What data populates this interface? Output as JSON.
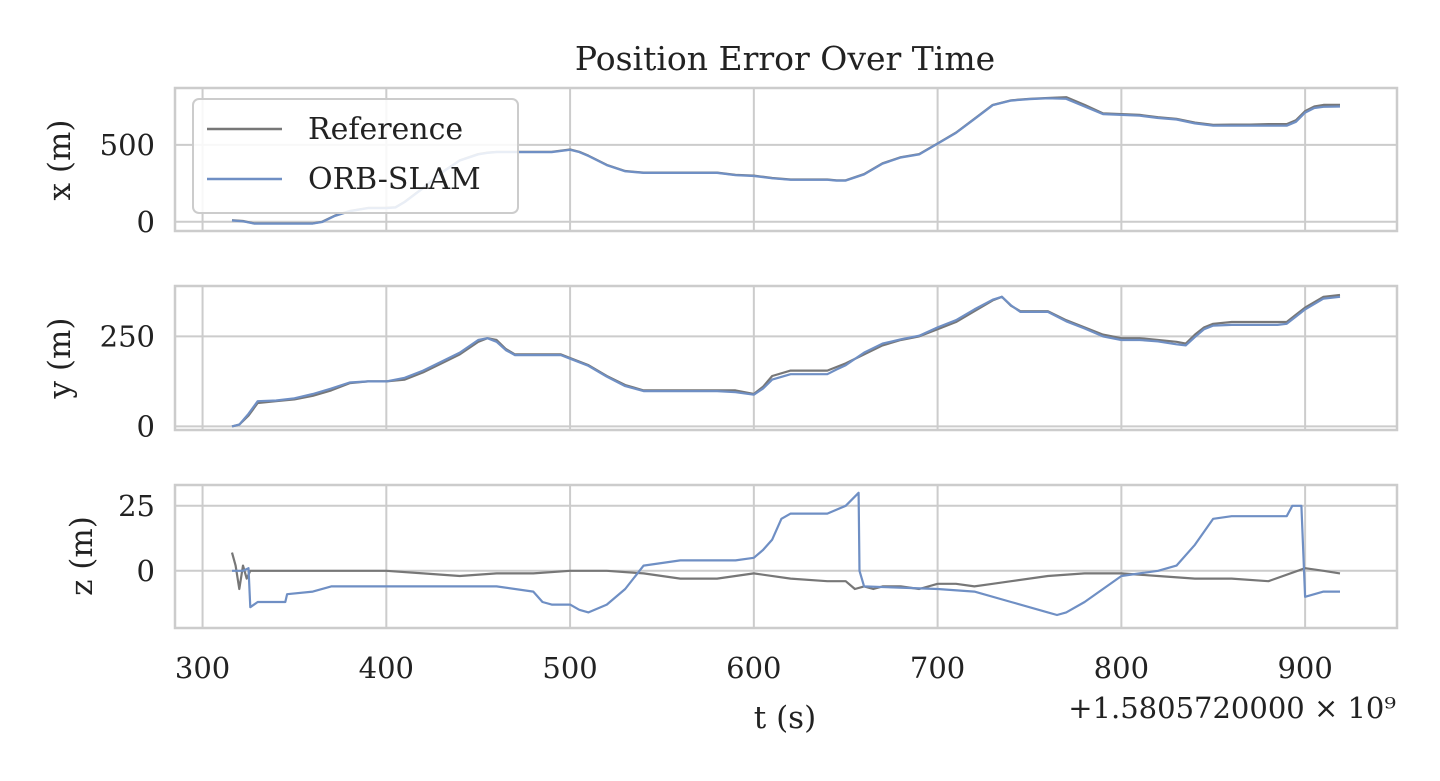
{
  "chart_data": {
    "type": "line",
    "title": "Position Error Over Time",
    "xlabel": "t (s)",
    "x_offset_text": "+1.5805720000 × 10⁹",
    "xlim": [
      285,
      950
    ],
    "x_ticks": [
      300,
      400,
      500,
      600,
      700,
      800,
      900
    ],
    "legend": {
      "placement": "top-left",
      "entries": [
        "Reference",
        "ORB-SLAM"
      ]
    },
    "colors": {
      "Reference": "#777777",
      "ORB-SLAM": "#6f8fc4"
    },
    "grid": true,
    "subplots": [
      {
        "id": "x",
        "ylabel": "x (m)",
        "ylim": [
          -60,
          870
        ],
        "y_ticks": [
          0,
          500
        ],
        "series": [
          {
            "name": "Reference",
            "x": [
              316,
              322,
              328,
              340,
              350,
              360,
              365,
              372,
              380,
              390,
              400,
              405,
              410,
              420,
              430,
              440,
              450,
              455,
              460,
              470,
              480,
              490,
              500,
              505,
              510,
              520,
              530,
              540,
              560,
              580,
              590,
              600,
              610,
              620,
              630,
              640,
              645,
              650,
              660,
              670,
              680,
              690,
              700,
              710,
              720,
              730,
              740,
              750,
              760,
              770,
              780,
              790,
              800,
              810,
              820,
              830,
              840,
              850,
              860,
              870,
              880,
              890,
              895,
              900,
              905,
              910,
              919
            ],
            "y": [
              10,
              5,
              -10,
              -10,
              -10,
              -10,
              0,
              40,
              70,
              90,
              90,
              95,
              130,
              220,
              320,
              400,
              440,
              450,
              455,
              455,
              455,
              455,
              470,
              455,
              430,
              370,
              330,
              320,
              320,
              320,
              305,
              300,
              285,
              275,
              275,
              275,
              270,
              270,
              310,
              380,
              420,
              440,
              510,
              580,
              670,
              760,
              790,
              800,
              805,
              810,
              760,
              705,
              700,
              695,
              680,
              670,
              645,
              630,
              632,
              632,
              635,
              635,
              660,
              720,
              750,
              760,
              760
            ]
          },
          {
            "name": "ORB-SLAM",
            "x": [
              316,
              322,
              328,
              340,
              350,
              360,
              365,
              372,
              380,
              390,
              400,
              405,
              410,
              420,
              430,
              440,
              450,
              455,
              460,
              470,
              480,
              490,
              500,
              505,
              510,
              520,
              530,
              540,
              560,
              580,
              590,
              600,
              610,
              620,
              630,
              640,
              645,
              650,
              660,
              670,
              680,
              690,
              700,
              710,
              720,
              730,
              740,
              750,
              760,
              770,
              780,
              790,
              800,
              810,
              820,
              830,
              840,
              850,
              860,
              870,
              880,
              890,
              895,
              900,
              905,
              910,
              919
            ],
            "y": [
              8,
              3,
              -12,
              -12,
              -12,
              -12,
              -2,
              38,
              68,
              88,
              88,
              93,
              128,
              218,
              318,
              398,
              438,
              448,
              453,
              453,
              453,
              453,
              468,
              453,
              428,
              368,
              328,
              318,
              318,
              318,
              303,
              298,
              283,
              273,
              273,
              273,
              268,
              268,
              308,
              378,
              418,
              438,
              508,
              578,
              668,
              758,
              788,
              798,
              803,
              800,
              750,
              700,
              695,
              690,
              675,
              665,
              640,
              625,
              625,
              625,
              625,
              625,
              650,
              710,
              740,
              748,
              750
            ]
          }
        ]
      },
      {
        "id": "y",
        "ylabel": "y (m)",
        "ylim": [
          -10,
          390
        ],
        "y_ticks": [
          0,
          250
        ],
        "series": [
          {
            "name": "Reference",
            "x": [
              316,
              320,
              325,
              330,
              340,
              350,
              360,
              370,
              380,
              390,
              400,
              410,
              420,
              430,
              440,
              450,
              455,
              460,
              465,
              470,
              480,
              495,
              500,
              510,
              520,
              530,
              540,
              560,
              580,
              590,
              600,
              605,
              610,
              620,
              630,
              640,
              645,
              650,
              660,
              670,
              680,
              690,
              700,
              710,
              720,
              730,
              735,
              740,
              745,
              760,
              770,
              780,
              790,
              800,
              810,
              820,
              830,
              835,
              840,
              845,
              850,
              860,
              870,
              880,
              885,
              890,
              895,
              900,
              910,
              919
            ],
            "y": [
              0,
              5,
              30,
              65,
              70,
              75,
              85,
              100,
              120,
              125,
              125,
              130,
              150,
              175,
              200,
              235,
              245,
              240,
              215,
              200,
              200,
              200,
              190,
              170,
              140,
              115,
              100,
              100,
              100,
              100,
              90,
              110,
              140,
              155,
              155,
              155,
              165,
              175,
              200,
              225,
              240,
              250,
              270,
              290,
              320,
              350,
              360,
              335,
              320,
              320,
              295,
              275,
              255,
              245,
              245,
              240,
              235,
              230,
              255,
              275,
              285,
              290,
              290,
              290,
              290,
              290,
              310,
              330,
              360,
              365
            ]
          },
          {
            "name": "ORB-SLAM",
            "x": [
              316,
              320,
              325,
              330,
              340,
              350,
              360,
              370,
              380,
              390,
              400,
              410,
              420,
              430,
              440,
              450,
              455,
              460,
              465,
              470,
              480,
              495,
              500,
              510,
              520,
              530,
              540,
              560,
              580,
              590,
              600,
              605,
              610,
              620,
              630,
              640,
              645,
              650,
              660,
              670,
              680,
              690,
              700,
              710,
              720,
              730,
              735,
              740,
              745,
              760,
              770,
              780,
              790,
              800,
              810,
              820,
              830,
              835,
              840,
              845,
              850,
              860,
              870,
              880,
              885,
              890,
              895,
              900,
              910,
              919
            ],
            "y": [
              0,
              5,
              35,
              70,
              72,
              78,
              90,
              105,
              122,
              125,
              125,
              135,
              155,
              180,
              205,
              240,
              245,
              235,
              212,
              198,
              198,
              198,
              188,
              168,
              138,
              112,
              98,
              98,
              98,
              95,
              88,
              105,
              130,
              145,
              145,
              145,
              158,
              170,
              205,
              230,
              242,
              252,
              275,
              295,
              325,
              352,
              360,
              336,
              318,
              318,
              292,
              272,
              250,
              240,
              240,
              236,
              228,
              225,
              248,
              270,
              280,
              282,
              282,
              282,
              282,
              285,
              305,
              325,
              355,
              360
            ]
          }
        ]
      },
      {
        "id": "z",
        "ylabel": "z (m)",
        "ylim": [
          -22,
          33
        ],
        "y_ticks": [
          0,
          25
        ],
        "series": [
          {
            "name": "Reference",
            "x": [
              316,
              318,
              320,
              322,
              324,
              326,
              330,
              340,
              360,
              380,
              400,
              420,
              440,
              460,
              480,
              500,
              520,
              540,
              560,
              580,
              600,
              620,
              640,
              650,
              655,
              660,
              665,
              670,
              680,
              690,
              700,
              710,
              720,
              730,
              740,
              760,
              780,
              800,
              820,
              840,
              860,
              880,
              900,
              910,
              919
            ],
            "y": [
              7,
              2,
              -7,
              2,
              -3,
              0,
              0,
              0,
              0,
              0,
              0,
              -1,
              -2,
              -1,
              -1,
              0,
              0,
              -1,
              -3,
              -3,
              -1,
              -3,
              -4,
              -4,
              -7,
              -6,
              -7,
              -6,
              -6,
              -7,
              -5,
              -5,
              -6,
              -5,
              -4,
              -2,
              -1,
              -1,
              -2,
              -3,
              -3,
              -4,
              1,
              0,
              -1
            ]
          },
          {
            "name": "ORB-SLAM",
            "x": [
              316,
              322,
              325,
              326,
              330,
              345,
              346,
              360,
              370,
              380,
              400,
              460,
              480,
              485,
              490,
              500,
              505,
              510,
              520,
              530,
              540,
              560,
              590,
              600,
              605,
              610,
              615,
              620,
              630,
              640,
              650,
              657,
              657.5,
              660,
              700,
              720,
              740,
              760,
              765,
              770,
              780,
              800,
              810,
              820,
              830,
              840,
              850,
              860,
              880,
              890,
              893,
              897,
              898,
              900,
              910,
              919
            ],
            "y": [
              0,
              0,
              1,
              -14,
              -12,
              -12,
              -9,
              -8,
              -6,
              -6,
              -6,
              -6,
              -8,
              -12,
              -13,
              -13,
              -15,
              -16,
              -13,
              -7,
              2,
              4,
              4,
              5,
              8,
              12,
              20,
              22,
              22,
              22,
              25,
              30,
              0,
              -6,
              -7,
              -8,
              -12,
              -16,
              -17,
              -16,
              -12,
              -2,
              -1,
              0,
              2,
              10,
              20,
              21,
              21,
              21,
              25,
              25,
              25,
              -10,
              -8,
              -8
            ]
          }
        ]
      }
    ]
  }
}
